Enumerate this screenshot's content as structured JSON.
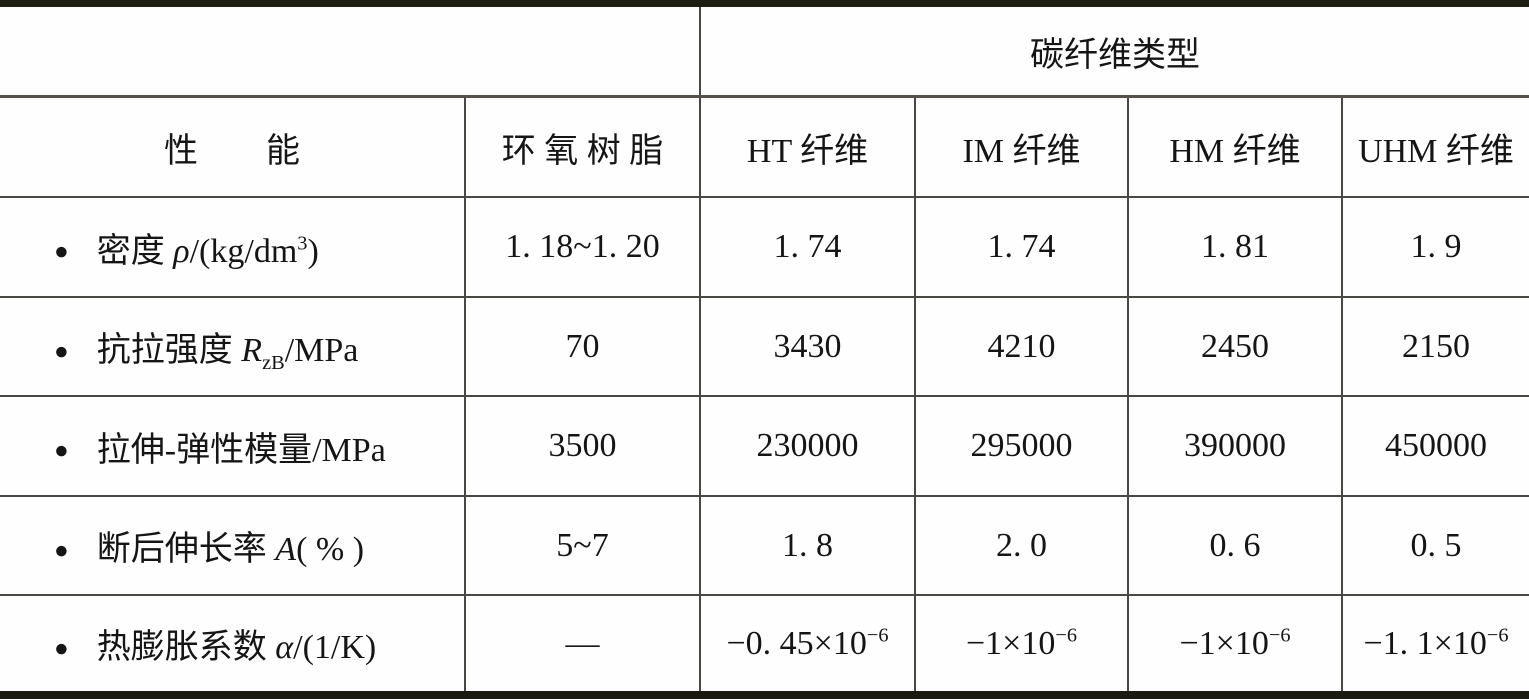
{
  "table": {
    "group_header": "碳纤维类型",
    "corner": "",
    "bullet": "●",
    "columns": [
      "性　　能",
      "环 氧 树 脂",
      "HT 纤维",
      "IM 纤维",
      "HM 纤维",
      "UHM 纤维"
    ],
    "rows": [
      {
        "label": "密度 *{ρ}/(kg/dm^{3})",
        "values": [
          "1. 18~1. 20",
          "1. 74",
          "1. 74",
          "1. 81",
          "1. 9"
        ]
      },
      {
        "label": "抗拉强度 *{R}_{zB}/MPa",
        "values": [
          "70",
          "3430",
          "4210",
          "2450",
          "2150"
        ]
      },
      {
        "label": "拉伸-弹性模量/MPa",
        "values": [
          "3500",
          "230000",
          "295000",
          "390000",
          "450000"
        ]
      },
      {
        "label": "断后伸长率 *{A}( % )",
        "values": [
          "5~7",
          "1. 8",
          "2. 0",
          "0. 6",
          "0. 5"
        ]
      },
      {
        "label": "热膨胀系数 *{α}/(1/K)",
        "values": [
          "—",
          "−0. 45×10^{−6}",
          "−1×10^{−6}",
          "−1×10^{−6}",
          "−1. 1×10^{−6}"
        ]
      }
    ]
  },
  "colors": {
    "background": "#fefefe",
    "text": "#151515",
    "border_heavy": "#201f14",
    "border_light": "#474743"
  }
}
